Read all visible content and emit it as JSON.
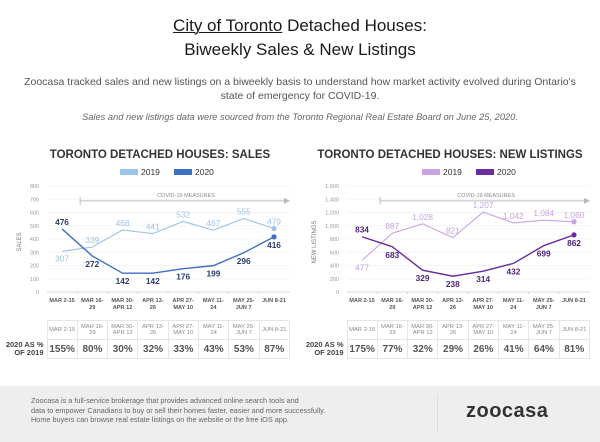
{
  "header": {
    "title_underlined": "City of Toronto",
    "title_rest": " Detached Houses:",
    "title_line2": "Biweekly Sales & New Listings",
    "intro": "Zoocasa tracked sales and new listings on a biweekly basis to understand how market activity evolved during Ontario's state of emergency for COVID-19.",
    "source": "Sales and new listings data were sourced from the Toronto Regional Real Estate Board on June 25, 2020."
  },
  "chart_data": [
    {
      "type": "line",
      "title": "TORONTO DETACHED HOUSES: SALES",
      "ylabel": "SALES",
      "xlabel": "",
      "ylim": [
        0,
        800
      ],
      "yticks": [
        0,
        100,
        200,
        300,
        400,
        500,
        600,
        700,
        800
      ],
      "ytick_labels": [
        "0",
        "100",
        "200",
        "300",
        "400",
        "500",
        "600",
        "700",
        "800"
      ],
      "grid": true,
      "legend": "top-center",
      "annotation": "COVID-19 MEASURES",
      "categories": [
        "MAR 2-15",
        "MAR 16-29",
        "MAR 30-APR 12",
        "APR 13-26",
        "APR 27-MAY 10",
        "MAY 11-24",
        "MAY 25-JUN 7",
        "JUN 8-21"
      ],
      "category_lines": [
        [
          "MAR 2-15"
        ],
        [
          "MAR 16-",
          "29"
        ],
        [
          "MAR 30-",
          "APR 12"
        ],
        [
          "APR 13-",
          "26"
        ],
        [
          "APR 27-",
          "MAY 10"
        ],
        [
          "MAY 11-",
          "24"
        ],
        [
          "MAY 25-",
          "JUN 7"
        ],
        [
          "JUN 8-21"
        ]
      ],
      "series": [
        {
          "name": "2019",
          "color": "#9cc3ea",
          "values": [
            307,
            339,
            468,
            441,
            532,
            467,
            555,
            479
          ]
        },
        {
          "name": "2020",
          "color": "#3d6fc4",
          "label_color": "#2a3d6b",
          "values": [
            476,
            272,
            142,
            142,
            176,
            199,
            296,
            416
          ]
        }
      ],
      "table": {
        "row_label": [
          "2020 AS %",
          "OF 2019"
        ],
        "headers": [
          [
            "MAR 2-15"
          ],
          [
            "MAR 16-",
            "29"
          ],
          [
            "MAR 30-",
            "APR 12"
          ],
          [
            "APR 13-",
            "26"
          ],
          [
            "APR 27-",
            "MAY 10"
          ],
          [
            "MAY 11-",
            "24"
          ],
          [
            "MAY 25-",
            "JUN 7"
          ],
          [
            "JUN 8-21"
          ]
        ],
        "values": [
          "155%",
          "80%",
          "30%",
          "32%",
          "33%",
          "43%",
          "53%",
          "87%"
        ]
      }
    },
    {
      "type": "line",
      "title": "TORONTO DETACHED HOUSES: NEW LISTINGS",
      "ylabel": "NEW LISTINGS",
      "xlabel": "",
      "ylim": [
        0,
        1600
      ],
      "yticks": [
        0,
        200,
        400,
        600,
        800,
        1000,
        1200,
        1400,
        1600
      ],
      "ytick_labels": [
        "0",
        "200",
        "400",
        "600",
        "800",
        "1,000",
        "1,200",
        "1,400",
        "1,600"
      ],
      "grid": true,
      "legend": "top-center",
      "annotation": "COVID-19 MEASURES",
      "categories": [
        "MAR 2-15",
        "MAR 16-29",
        "MAR 30-APR 12",
        "APR 13-26",
        "APR 27-MAY 10",
        "MAY 11-24",
        "MAY 25-JUN 7",
        "JUN 8-21"
      ],
      "category_lines": [
        [
          "MAR 2-15"
        ],
        [
          "MAR 16-",
          "29"
        ],
        [
          "MAR 30-",
          "APR 12"
        ],
        [
          "APR 13-",
          "26"
        ],
        [
          "APR 27-",
          "MAY 10"
        ],
        [
          "MAY 11-",
          "24"
        ],
        [
          "MAY 25-",
          "JUN 7"
        ],
        [
          "JUN 8-21"
        ]
      ],
      "series": [
        {
          "name": "2019",
          "color": "#c9a3e3",
          "values": [
            477,
            887,
            1028,
            821,
            1207,
            1042,
            1084,
            1060
          ],
          "labels": [
            "477",
            "887",
            "1,028",
            "821",
            "1,207",
            "1,042",
            "1,084",
            "1,060"
          ]
        },
        {
          "name": "2020",
          "color": "#6a2c9e",
          "label_color": "#4f2478",
          "values": [
            834,
            683,
            329,
            238,
            314,
            432,
            699,
            862
          ],
          "labels": [
            "834",
            "683",
            "329",
            "238",
            "314",
            "432",
            "699",
            "862"
          ]
        }
      ],
      "table": {
        "row_label": [
          "2020 AS %",
          "OF 2019"
        ],
        "headers": [
          [
            "MAR 2-15"
          ],
          [
            "MAR 16-",
            "29"
          ],
          [
            "MAR 30-",
            "APR 12"
          ],
          [
            "APR 13-",
            "26"
          ],
          [
            "APR 27-",
            "MAY 10"
          ],
          [
            "MAY 11-",
            "24"
          ],
          [
            "MAY 25-",
            "JUN 7"
          ],
          [
            "JUN 8-21"
          ]
        ],
        "values": [
          "175%",
          "77%",
          "32%",
          "29%",
          "26%",
          "41%",
          "64%",
          "81%"
        ]
      }
    }
  ],
  "footer": {
    "text_lines": [
      "Zoocasa is a full-service brokerage that provides advanced online search tools and",
      "data to empower Canadians to buy or sell their homes faster, easier and more successfully.",
      "Home buyers can browse real estate listings on the website or the free iOS app."
    ],
    "logo": "zoocasa"
  }
}
